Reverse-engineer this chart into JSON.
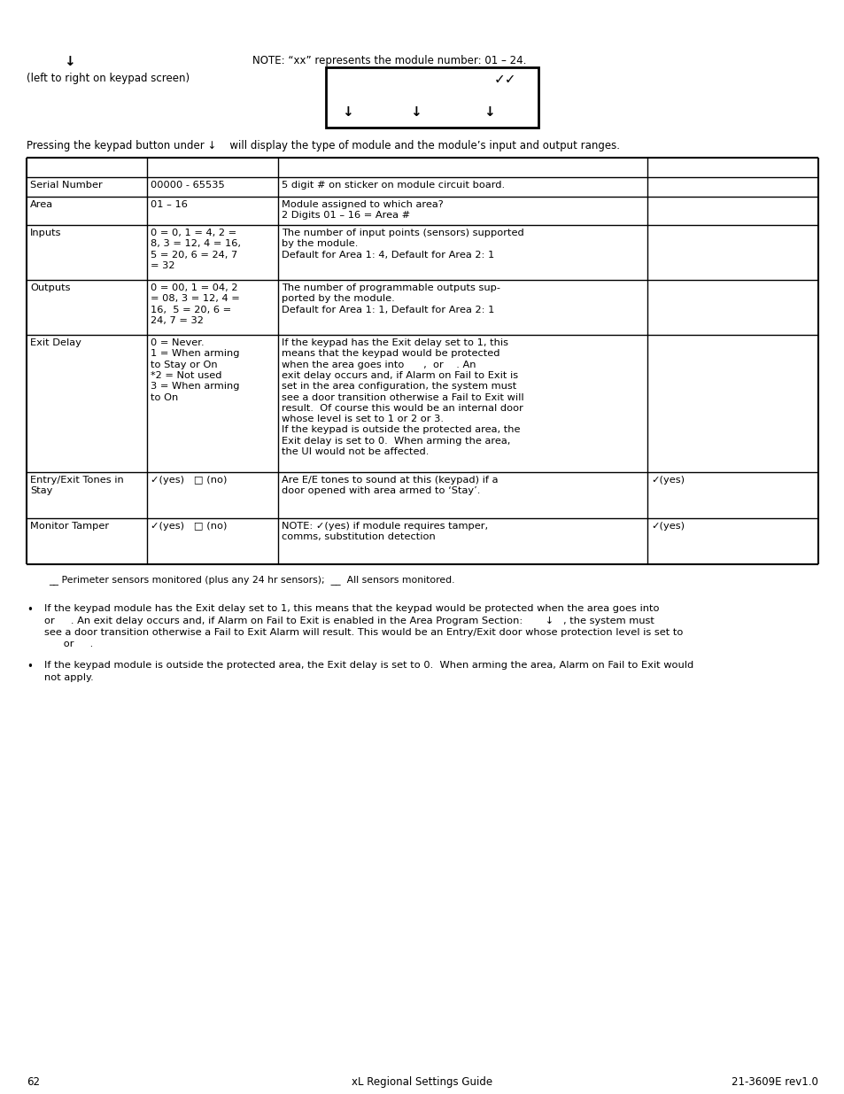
{
  "page_number": "62",
  "footer_center": "xL Regional Settings Guide",
  "footer_right": "21-3609E rev1.0",
  "bg_color": "#ffffff",
  "note_text": "NOTE: “xx” represents the module number: 01 – 24.",
  "pressing_text": "Pressing the keypad button under ↓    will display the type of module and the module’s input and output ranges.",
  "table_rows": [
    {
      "col1": "Serial Number",
      "col2": "00000 - 65535",
      "col3": "5 digit # on sticker on module circuit board.",
      "col4": ""
    },
    {
      "col1": "Area",
      "col2": "01 – 16",
      "col3": "Module assigned to which area?\n2 Digits 01 – 16 = Area #",
      "col4": ""
    },
    {
      "col1": "Inputs",
      "col2": "0 = 0, 1 = 4, 2 =\n8, 3 = 12, 4 = 16,\n5 = 20, 6 = 24, 7\n= 32",
      "col3": "The number of input points (sensors) supported\nby the module.\nDefault for Area 1: 4, Default for Area 2: 1",
      "col4": ""
    },
    {
      "col1": "Outputs",
      "col2": "0 = 00, 1 = 04, 2\n= 08, 3 = 12, 4 =\n16,  5 = 20, 6 =\n24, 7 = 32",
      "col3": "The number of programmable outputs sup-\nported by the module.\nDefault for Area 1: 1, Default for Area 2: 1",
      "col4": ""
    },
    {
      "col1": "Exit Delay",
      "col2": "0 = Never.\n1 = When arming\nto Stay or On\n*2 = Not used\n3 = When arming\nto On",
      "col3": "If the keypad has the Exit delay set to 1, this\nmeans that the keypad would be protected\nwhen the area goes into      ,  or    . An\nexit delay occurs and, if Alarm on Fail to Exit is\nset in the area configuration, the system must\nsee a door transition otherwise a Fail to Exit will\nresult.  Of course this would be an internal door\nwhose level is set to 1 or 2 or 3.\nIf the keypad is outside the protected area, the\nExit delay is set to 0.  When arming the area,\nthe UI would not be affected.",
      "col4": ""
    },
    {
      "col1": "Entry/Exit Tones in\nStay",
      "col2": "✓(yes)   □ (no)",
      "col3": "Are E/E tones to sound at this (keypad) if a\ndoor opened with area armed to ‘Stay’.",
      "col4": "✓(yes)"
    },
    {
      "col1": "Monitor Tamper",
      "col2": "✓(yes)   □ (no)",
      "col3": "NOTE: ✓(yes) if module requires tamper,\ncomms, substitution detection",
      "col4": "✓(yes)"
    }
  ],
  "perimeter_note": "__ Perimeter sensors monitored (plus any 24 hr sensors);  __  All sensors monitored.",
  "bullet_points": [
    [
      "If the keypad module has the Exit delay set to 1, this means that the keypad would be protected when the area goes into",
      "or     . An exit delay occurs and, if Alarm on Fail to Exit is enabled in the Area Program Section:       ↓   , the system must",
      "see a door transition otherwise a Fail to Exit Alarm will result. This would be an Entry/Exit door whose protection level is set to",
      "      or     ."
    ],
    [
      "If the keypad module is outside the protected area, the Exit delay is set to 0.  When arming the area, Alarm on Fail to Exit would",
      "not apply."
    ]
  ]
}
